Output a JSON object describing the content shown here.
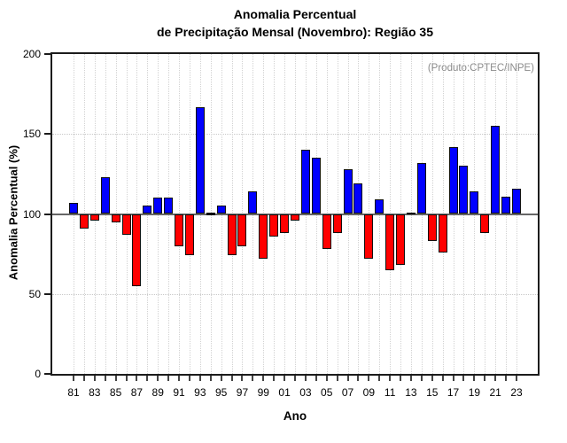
{
  "title": {
    "line1": "Anomalia Percentual",
    "line2": "de Precipitação Mensal (Novembro): Região 35"
  },
  "annotation": "(Produto:CPTEC/INPE)",
  "chart_data": {
    "type": "bar",
    "title": "Anomalia Percentual de Precipitação Mensal (Novembro): Região 35",
    "xlabel": "Ano",
    "ylabel": "Anomalia Percentual (%)",
    "ylim": [
      0,
      200
    ],
    "yticks": [
      0,
      50,
      100,
      150,
      200
    ],
    "hgrid": [
      50,
      150
    ],
    "baseline": 100,
    "grid": "dotted",
    "legend_position": "none",
    "x_tick_labels_shown": [
      "81",
      "83",
      "85",
      "87",
      "89",
      "91",
      "93",
      "95",
      "97",
      "99",
      "01",
      "03",
      "05",
      "07",
      "09",
      "11",
      "13",
      "15",
      "17",
      "19",
      "21",
      "23"
    ],
    "categories": [
      "81",
      "82",
      "83",
      "84",
      "85",
      "86",
      "87",
      "88",
      "89",
      "90",
      "91",
      "92",
      "93",
      "94",
      "95",
      "96",
      "97",
      "98",
      "99",
      "00",
      "01",
      "02",
      "03",
      "04",
      "05",
      "06",
      "07",
      "08",
      "09",
      "10",
      "11",
      "12",
      "13",
      "14",
      "15",
      "16",
      "17",
      "18",
      "19",
      "20",
      "21",
      "22",
      "23"
    ],
    "values": [
      107,
      91,
      96,
      123,
      95,
      87,
      55,
      105,
      110,
      110,
      80,
      74,
      167,
      100,
      105,
      74,
      80,
      114,
      72,
      86,
      88,
      96,
      140,
      135,
      78,
      88,
      128,
      119,
      72,
      109,
      65,
      68,
      101,
      132,
      83,
      76,
      142,
      130,
      114,
      88,
      155,
      111,
      116
    ],
    "colors": {
      "above_baseline": "#0000ff",
      "below_baseline": "#ff0000",
      "neutral": "#111111",
      "bar_border": "#111111",
      "baseline_line": "#666666",
      "annotation_text": "#8c8c8c"
    }
  }
}
